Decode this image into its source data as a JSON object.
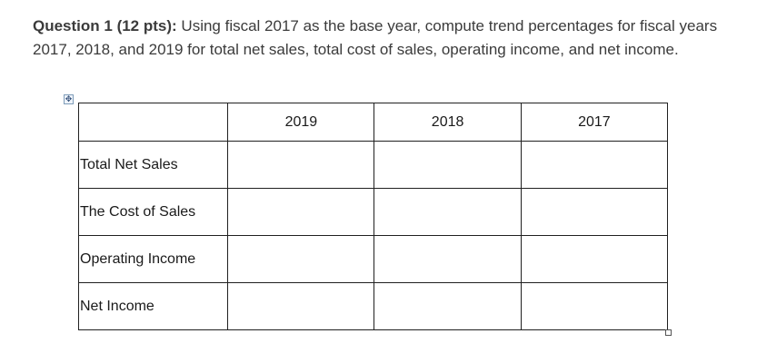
{
  "question": {
    "label": "Question 1 (12 pts):",
    "text": " Using fiscal 2017 as the base year, compute trend percentages for fiscal years 2017, 2018, and 2019 for total net sales, total cost of sales, operating income, and net income."
  },
  "table": {
    "headers": [
      "",
      "2019",
      "2018",
      "2017"
    ],
    "rows": [
      {
        "label": "Total Net Sales",
        "values": [
          "",
          "",
          ""
        ]
      },
      {
        "label": "The Cost of Sales",
        "values": [
          "",
          "",
          ""
        ]
      },
      {
        "label": "Operating Income",
        "values": [
          "",
          "",
          ""
        ]
      },
      {
        "label": "Net Income",
        "values": [
          "",
          "",
          ""
        ]
      }
    ]
  },
  "icons": {
    "table_move": "move-arrows-icon",
    "table_resize": "resize-square-icon"
  }
}
